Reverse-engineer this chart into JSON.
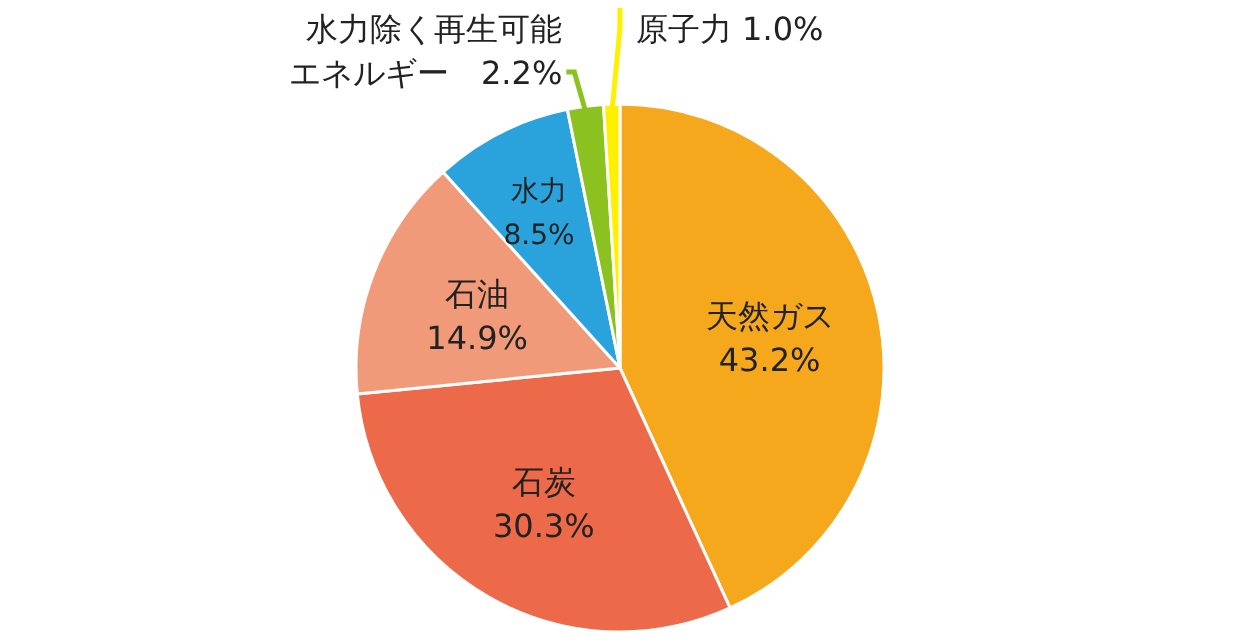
{
  "chart_data": {
    "type": "pie",
    "categories": [
      "天然ガス",
      "石炭",
      "石油",
      "水力",
      "水力除く再生可能エネルギー",
      "原子力"
    ],
    "values": [
      43.2,
      30.3,
      14.9,
      8.5,
      2.2,
      1.0
    ],
    "value_labels": [
      "43.2%",
      "30.3%",
      "14.9%",
      "8.5%",
      "2.2%",
      "1.0%"
    ],
    "colors": [
      "#f5a81c",
      "#ec6a4a",
      "#f19a7a",
      "#2aa3dc",
      "#8cc220",
      "#fff000"
    ]
  }
}
